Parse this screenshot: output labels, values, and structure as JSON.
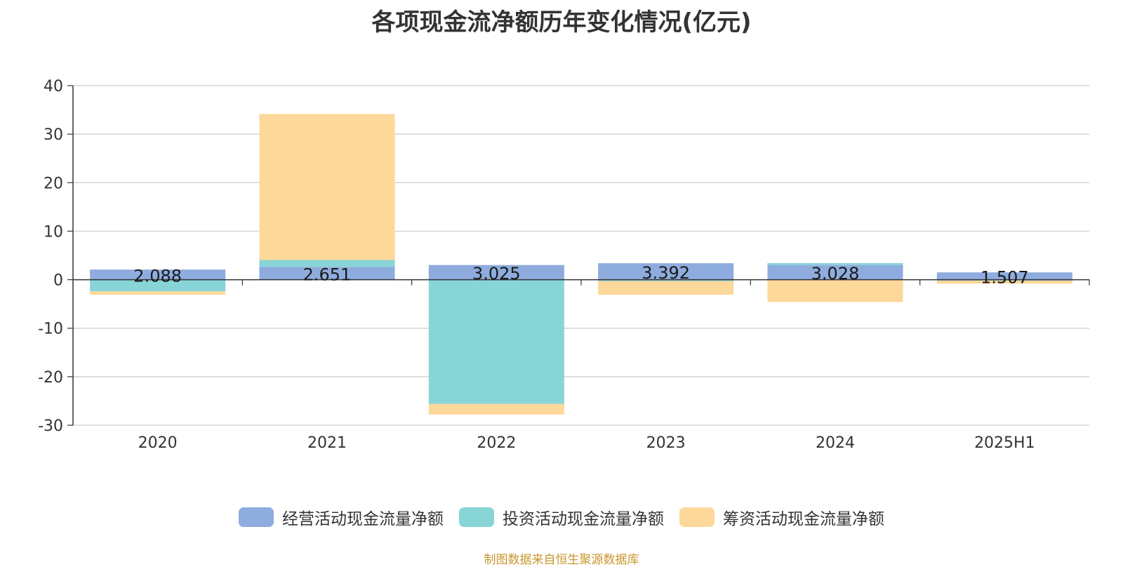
{
  "chart_data": {
    "type": "bar",
    "stacked": true,
    "title": "各项现金流净额历年变化情况(亿元)",
    "categories": [
      "2020",
      "2021",
      "2022",
      "2023",
      "2024",
      "2025H1"
    ],
    "ylim": [
      -30,
      40
    ],
    "yticks": [
      40,
      30,
      20,
      10,
      0,
      -10,
      -20,
      -30
    ],
    "ytick_labels": [
      "40",
      "30",
      "20",
      "10",
      "0",
      "-10",
      "-20",
      "-30"
    ],
    "grid": true,
    "series": [
      {
        "name": "经营活动现金流量净额",
        "color": "#8eacdd",
        "values": [
          2.088,
          2.651,
          3.025,
          3.392,
          3.028,
          1.507
        ],
        "labels": [
          "2.088",
          "2.651",
          "3.025",
          "3.392",
          "3.028",
          "1.507"
        ]
      },
      {
        "name": "投资活动现金流量净额",
        "color": "#88d5d8",
        "values": [
          -2.4,
          1.4,
          -25.6,
          -0.3,
          0.4,
          -0.2
        ]
      },
      {
        "name": "筹资活动现金流量净额",
        "color": "#fdd89b",
        "values": [
          -0.7,
          30.1,
          -2.2,
          -2.8,
          -4.6,
          -0.6
        ]
      }
    ],
    "legend_position": "bottom-center"
  },
  "title": "各项现金流净额历年变化情况(亿元)",
  "source": "制图数据来自恒生聚源数据库"
}
